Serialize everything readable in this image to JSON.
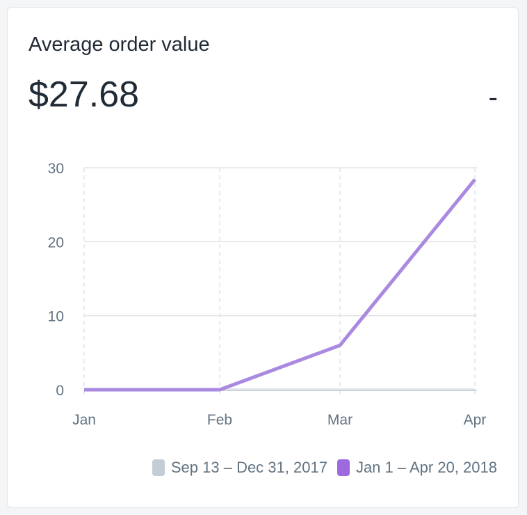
{
  "card": {
    "title": "Average order value",
    "value": "$27.68",
    "delta": "-"
  },
  "chart_data": {
    "type": "line",
    "title": "Average order value",
    "x": [
      "Jan",
      "Feb",
      "Mar",
      "Apr"
    ],
    "ylim": [
      0,
      30
    ],
    "yticks": [
      0,
      10,
      20,
      30
    ],
    "grid": true,
    "legend_position": "bottom-right",
    "series": [
      {
        "name": "Sep 13 – Dec 31, 2017",
        "color": "#c4cdd5",
        "values": [
          0,
          0,
          0,
          0
        ]
      },
      {
        "name": "Jan 1 – Apr 20, 2018",
        "color": "#9c6ade",
        "line_color": "#a98ae0",
        "values": [
          0,
          0,
          6.0,
          28.4
        ]
      }
    ]
  }
}
